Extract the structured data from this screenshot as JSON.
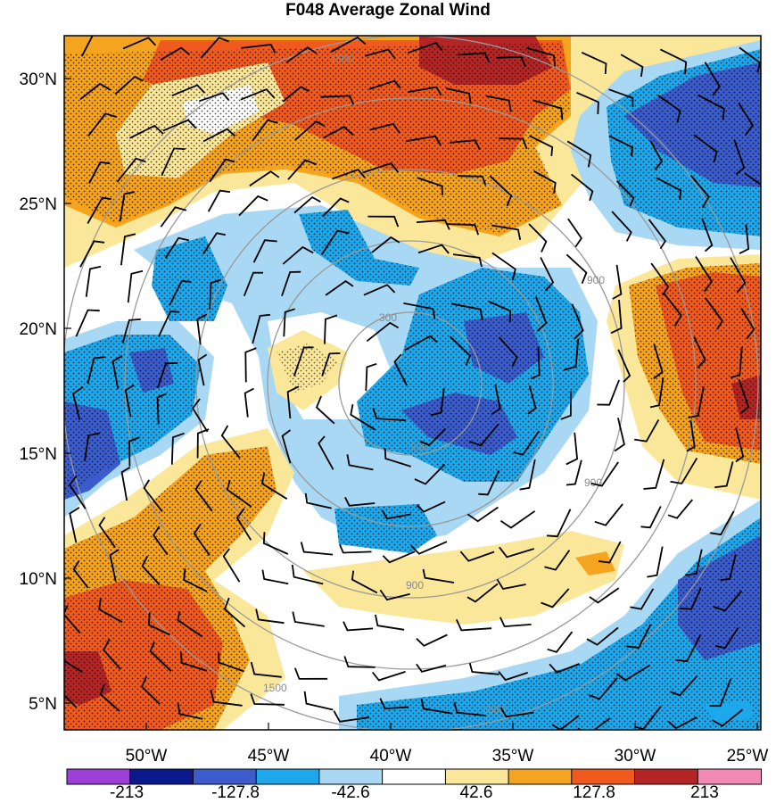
{
  "title": "F048 Average Zonal Wind",
  "latitude_labels": [
    "30°N",
    "25°N",
    "20°N",
    "15°N",
    "10°N",
    "5°N"
  ],
  "longitude_labels": [
    "50°W",
    "45°W",
    "40°W",
    "35°W",
    "30°W",
    "25°W"
  ],
  "colorbar": {
    "labels": [
      "-213",
      "-127.8",
      "-42.6",
      "42.6",
      "127.8",
      "213"
    ],
    "colors": [
      "#9b3fd6",
      "#0a1a8c",
      "#3b5ccc",
      "#1ea8ec",
      "#a8d8f4",
      "#ffffff",
      "#fbe79a",
      "#f5a41f",
      "#f05a1e",
      "#b52525",
      "#f28ab4"
    ]
  },
  "range_ring_labels": [
    "300",
    "900",
    "1500"
  ],
  "colors": {
    "dark_red": "#b52525",
    "red_orange": "#f05a1e",
    "orange": "#f5a41f",
    "pale_yellow": "#fbe79a",
    "light_blue": "#a8d8f4",
    "blue": "#1ea8ec",
    "dark_blue": "#3b5ccc",
    "ring_gray": "#999999"
  }
}
